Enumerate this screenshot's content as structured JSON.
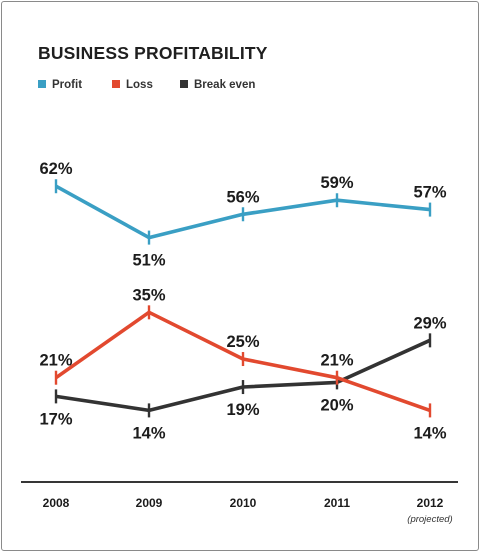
{
  "chart_data": {
    "type": "line",
    "title": "BUSINESS PROFITABILITY",
    "categories": [
      "2008",
      "2009",
      "2010",
      "2011",
      "2012"
    ],
    "category_notes": [
      "",
      "",
      "",
      "",
      "(projected)"
    ],
    "series": [
      {
        "name": "Profit",
        "values": [
          62,
          51,
          56,
          59,
          57
        ],
        "labels": [
          "62%",
          "51%",
          "56%",
          "59%",
          "57%"
        ],
        "color": "#3a9fc4",
        "label_position": [
          "above",
          "below",
          "above",
          "above",
          "above"
        ]
      },
      {
        "name": "Loss",
        "values": [
          21,
          35,
          25,
          21,
          14
        ],
        "labels": [
          "21%",
          "35%",
          "25%",
          "21%",
          "14%"
        ],
        "color": "#e2492f",
        "label_position": [
          "above",
          "above",
          "above",
          "above",
          "below"
        ]
      },
      {
        "name": "Break even",
        "values": [
          17,
          14,
          19,
          20,
          29
        ],
        "labels": [
          "17%",
          "14%",
          "19%",
          "20%",
          "29%"
        ],
        "color": "#333333",
        "label_position": [
          "below",
          "below",
          "below",
          "below",
          "above"
        ]
      }
    ],
    "legend_position": "top-left",
    "ylim": [
      10,
      65
    ],
    "grid": false
  }
}
